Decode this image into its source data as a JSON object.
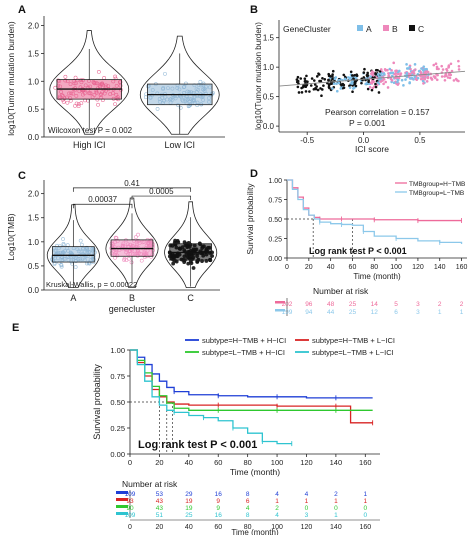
{
  "panels": {
    "A": "A",
    "B": "B",
    "C": "C",
    "D": "D",
    "E": "E"
  },
  "chart_data": [
    {
      "id": "A",
      "type": "violin-box",
      "ylabel": "log10(Tumor mutation burden)",
      "categories": [
        "High ICI",
        "Low ICI"
      ],
      "yticks": [
        0.0,
        0.5,
        1.0,
        1.5,
        2.0
      ],
      "ylim": [
        0,
        2.1
      ],
      "summary": [
        {
          "group": "High ICI",
          "q1": 0.68,
          "median": 0.86,
          "q3": 1.03,
          "color": "#e8608e"
        },
        {
          "group": "Low ICI",
          "q1": 0.58,
          "median": 0.76,
          "q3": 0.95,
          "color": "#8fb7d6"
        }
      ],
      "annotation": "Wilcoxon test P = 0.002"
    },
    {
      "id": "B",
      "type": "scatter",
      "xlabel": "ICI score",
      "ylabel": "log10(Tumor mutation burden)",
      "legend_title": "GeneCluster",
      "legend": [
        {
          "name": "A",
          "color": "#7fbfe8"
        },
        {
          "name": "B",
          "color": "#ee88bb"
        },
        {
          "name": "C",
          "color": "#111111"
        }
      ],
      "xticks": [
        -0.5,
        0.0,
        0.5
      ],
      "yticks": [
        0.0,
        0.5,
        1.0,
        1.5
      ],
      "xlim": [
        -0.75,
        0.9
      ],
      "ylim": [
        -0.1,
        1.8
      ],
      "trend": {
        "x0": -0.75,
        "y0": 0.68,
        "x1": 0.9,
        "y1": 0.93
      },
      "annotation": [
        "Pearson correlation = 0.157",
        "P = 0.001"
      ]
    },
    {
      "id": "C",
      "type": "violin-box",
      "ylabel": "Log10(TMB)",
      "xlabel": "genecluster",
      "categories": [
        "A",
        "B",
        "C"
      ],
      "yticks": [
        0.0,
        0.5,
        1.0,
        1.5,
        2.0
      ],
      "ylim": [
        0,
        2.2
      ],
      "summary": [
        {
          "group": "A",
          "q1": 0.58,
          "median": 0.72,
          "q3": 0.9,
          "color": "#8fb7d6"
        },
        {
          "group": "B",
          "q1": 0.7,
          "median": 0.86,
          "q3": 1.04,
          "color": "#ee88bb"
        },
        {
          "group": "C",
          "q1": 0.62,
          "median": 0.78,
          "q3": 0.96,
          "color": "#111111"
        }
      ],
      "comparisons": [
        {
          "from": "A",
          "to": "B",
          "label": "0.00037"
        },
        {
          "from": "B",
          "to": "C",
          "label": "0.0005"
        },
        {
          "from": "A",
          "to": "C",
          "label": "0.41"
        }
      ],
      "annotation": "Kruskal-Wallis, p = 0.00022"
    },
    {
      "id": "D",
      "type": "line",
      "xlabel": "Time (month)",
      "ylabel": "Survival probability",
      "xticks": [
        0,
        20,
        40,
        60,
        80,
        100,
        120,
        140,
        160
      ],
      "yticks": [
        0.0,
        0.25,
        0.5,
        0.75,
        1.0
      ],
      "xlim": [
        0,
        165
      ],
      "ylim": [
        0,
        1
      ],
      "series": [
        {
          "name": "TMBgroup=H−TMB",
          "color": "#ee6a9a",
          "x": [
            0,
            5,
            10,
            15,
            20,
            25,
            30,
            40,
            50,
            60,
            80,
            100,
            120,
            140,
            160
          ],
          "y": [
            1.0,
            0.9,
            0.78,
            0.64,
            0.55,
            0.52,
            0.5,
            0.5,
            0.5,
            0.5,
            0.49,
            0.49,
            0.48,
            0.48,
            0.48
          ]
        },
        {
          "name": "TMBgroup=L−TMB",
          "color": "#8cc8ea",
          "x": [
            0,
            5,
            10,
            15,
            20,
            25,
            30,
            40,
            50,
            60,
            70,
            80,
            100,
            120,
            140,
            160
          ],
          "y": [
            1.0,
            0.88,
            0.75,
            0.62,
            0.55,
            0.5,
            0.46,
            0.44,
            0.43,
            0.42,
            0.34,
            0.28,
            0.25,
            0.22,
            0.2,
            0.18
          ]
        }
      ],
      "median_marks": [
        24,
        60
      ],
      "annotation": "Log rank test P < 0.001",
      "risk_title": "Number at risk",
      "risk_rows": [
        {
          "color": "#ee6a9a",
          "values": [
            "202",
            "96",
            "48",
            "25",
            "14",
            "5",
            "3",
            "2",
            "2"
          ]
        },
        {
          "color": "#8cc8ea",
          "values": [
            "199",
            "94",
            "44",
            "25",
            "12",
            "6",
            "3",
            "1",
            "1"
          ]
        }
      ]
    },
    {
      "id": "E",
      "type": "line",
      "xlabel": "Time (month)",
      "ylabel": "Survival probability",
      "xticks": [
        0,
        20,
        40,
        60,
        80,
        100,
        120,
        140,
        160
      ],
      "yticks": [
        0.0,
        0.25,
        0.5,
        0.75,
        1.0
      ],
      "xlim": [
        0,
        170
      ],
      "ylim": [
        0,
        1
      ],
      "series": [
        {
          "name": "subtype=H−TMB + H−ICI",
          "color": "#1f3fd6",
          "x": [
            0,
            5,
            10,
            15,
            20,
            25,
            30,
            40,
            60,
            80,
            100,
            120,
            140,
            165
          ],
          "y": [
            1.0,
            0.93,
            0.86,
            0.77,
            0.7,
            0.64,
            0.6,
            0.57,
            0.56,
            0.55,
            0.55,
            0.54,
            0.54,
            0.54
          ]
        },
        {
          "name": "subtype=H−TMB + L−ICI",
          "color": "#d82424",
          "x": [
            0,
            5,
            10,
            15,
            20,
            25,
            30,
            40,
            60,
            80,
            100,
            120,
            140,
            150,
            165
          ],
          "y": [
            1.0,
            0.88,
            0.75,
            0.62,
            0.55,
            0.5,
            0.48,
            0.47,
            0.47,
            0.47,
            0.46,
            0.46,
            0.46,
            0.3,
            0.3
          ]
        },
        {
          "name": "subtype=L−TMB + H−ICI",
          "color": "#2ec82e",
          "x": [
            0,
            5,
            10,
            15,
            20,
            25,
            30,
            40,
            60,
            80,
            100,
            120,
            140,
            165
          ],
          "y": [
            1.0,
            0.9,
            0.78,
            0.65,
            0.56,
            0.49,
            0.44,
            0.42,
            0.42,
            0.42,
            0.42,
            0.42,
            0.42,
            0.42
          ]
        },
        {
          "name": "subtype=L−TMB + L−ICI",
          "color": "#2fc4d0",
          "x": [
            0,
            5,
            10,
            15,
            20,
            25,
            30,
            40,
            50,
            60,
            70,
            80,
            90,
            100,
            110
          ],
          "y": [
            1.0,
            0.86,
            0.7,
            0.55,
            0.47,
            0.42,
            0.4,
            0.37,
            0.35,
            0.32,
            0.25,
            0.2,
            0.12,
            0.1,
            0.1
          ]
        }
      ],
      "median_marks": [
        20,
        25,
        29
      ],
      "annotation": "Log rank test P < 0.001",
      "risk_title": "Number at risk",
      "risk_rows": [
        {
          "color": "#1f3fd6",
          "values": [
            "109",
            "53",
            "29",
            "16",
            "8",
            "4",
            "4",
            "2",
            "1"
          ]
        },
        {
          "color": "#d82424",
          "values": [
            "93",
            "43",
            "19",
            "9",
            "6",
            "1",
            "1",
            "1",
            "1"
          ]
        },
        {
          "color": "#2ec82e",
          "values": [
            "90",
            "43",
            "19",
            "9",
            "4",
            "2",
            "0",
            "0",
            "0"
          ]
        },
        {
          "color": "#2fc4d0",
          "values": [
            "109",
            "51",
            "25",
            "16",
            "8",
            "4",
            "3",
            "1",
            "0"
          ]
        }
      ]
    }
  ]
}
